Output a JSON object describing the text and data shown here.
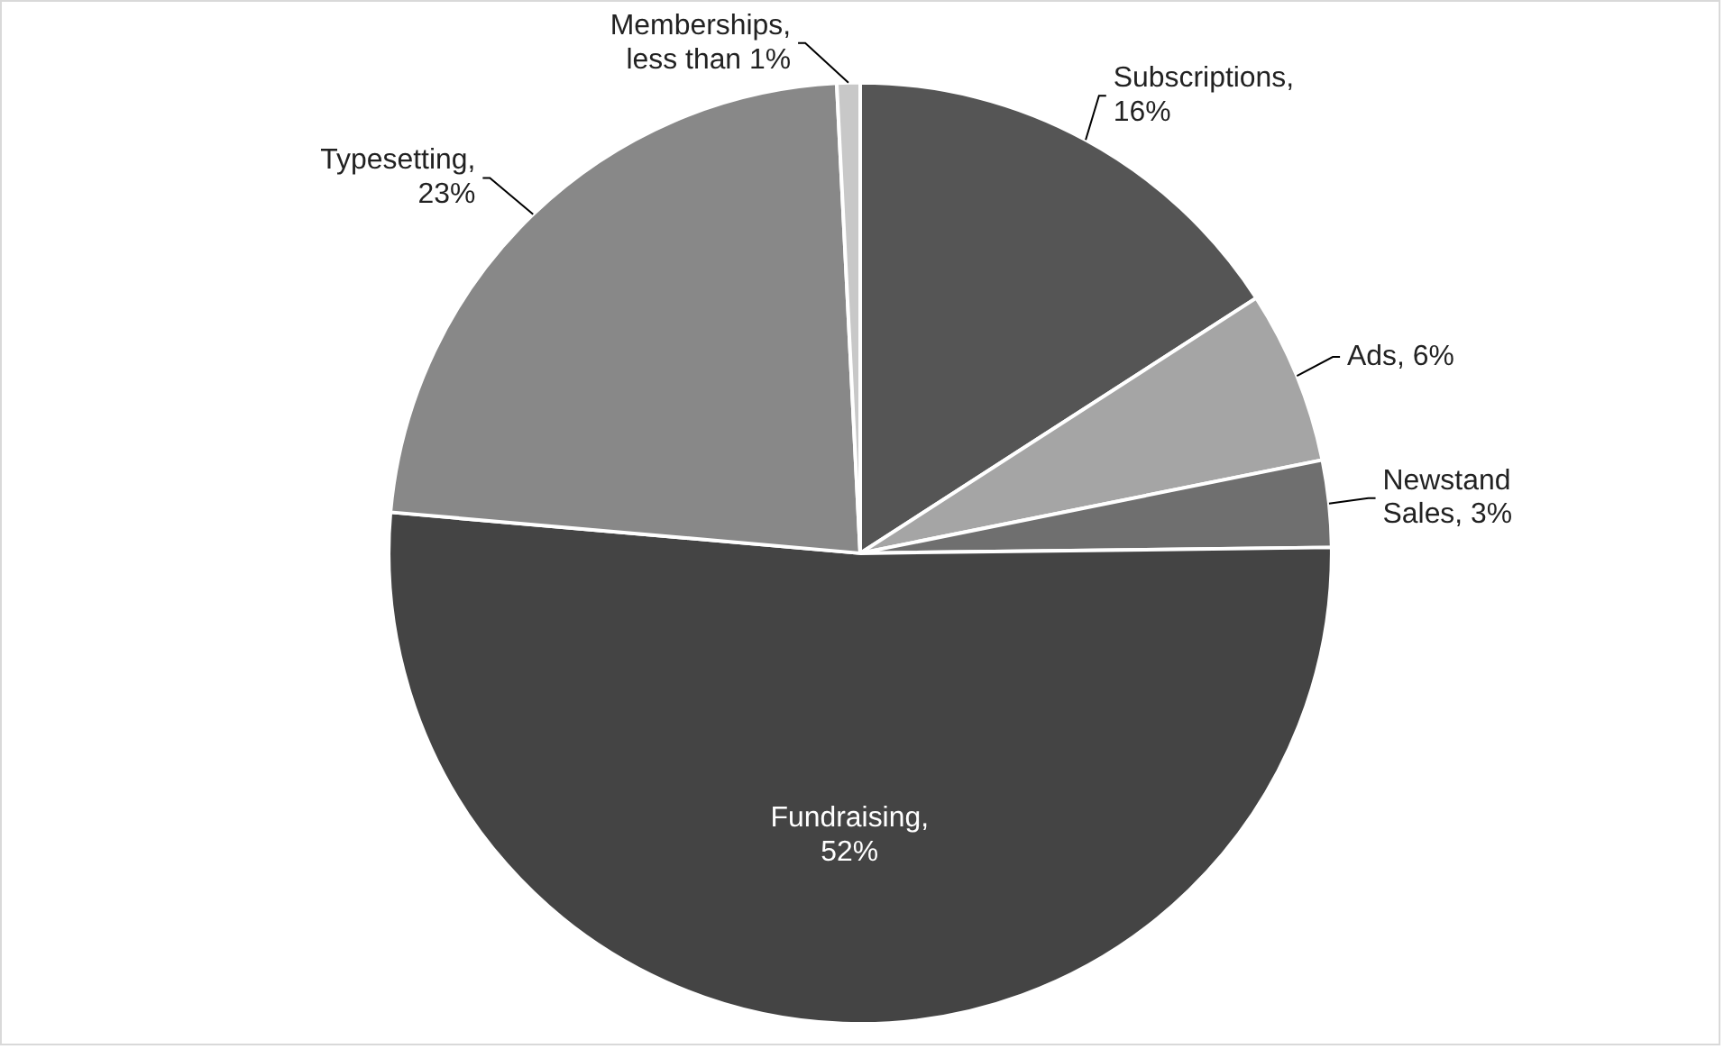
{
  "chart_data": {
    "type": "pie",
    "categories": [
      "Subscriptions, 16%",
      "Ads, 6%",
      "Newstand Sales, 3%",
      "Fundraising, 52%",
      "Typesetting, 23%",
      "Memberships, less than 1%"
    ],
    "values": [
      16,
      6,
      3,
      52,
      23,
      0.8
    ],
    "colors": [
      "#555555",
      "#a5a5a5",
      "#6f6f6f",
      "#444444",
      "#888888",
      "#c8c8c8"
    ],
    "legend": false
  }
}
